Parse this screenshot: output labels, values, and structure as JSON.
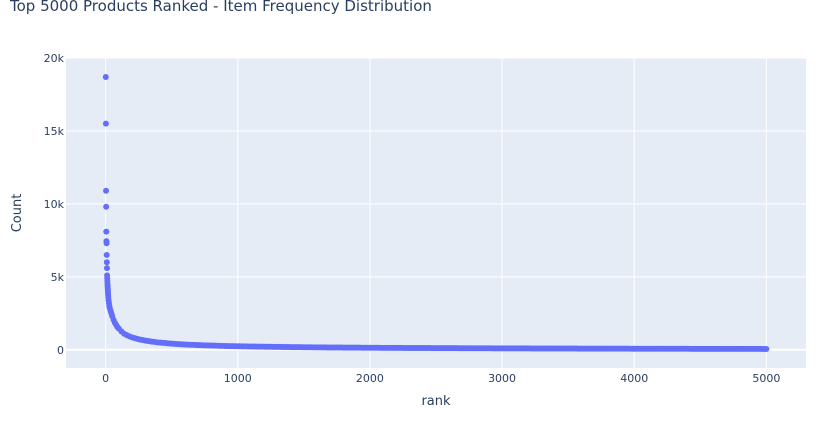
{
  "chart_data": {
    "type": "scatter",
    "title": "Top 5000 Products Ranked - Item Frequency Distribution",
    "xlabel": "rank",
    "ylabel": "Count",
    "xlim": [
      -300,
      5300
    ],
    "ylim": [
      -1250,
      20000
    ],
    "x_ticks": [
      0,
      1000,
      2000,
      3000,
      4000,
      5000
    ],
    "x_tick_labels": [
      "0",
      "1000",
      "2000",
      "3000",
      "4000",
      "5000"
    ],
    "y_ticks": [
      0,
      5000,
      10000,
      15000,
      20000
    ],
    "y_tick_labels": [
      "0",
      "5k",
      "10k",
      "15k",
      "20k"
    ],
    "grid": true,
    "marker_color": "#636efa",
    "plot_background": "#e5ecf6",
    "series": [
      {
        "x": [
          1,
          2,
          3,
          4,
          5,
          6,
          7,
          8,
          9,
          10,
          11,
          12,
          13,
          14,
          15,
          16,
          17,
          18,
          19,
          20,
          22,
          25,
          28,
          30,
          35,
          40,
          45,
          50,
          60,
          70,
          80,
          90,
          100,
          120,
          140,
          160,
          180,
          200,
          250,
          300,
          350,
          400,
          450,
          500,
          600,
          700,
          800,
          900,
          1000,
          1200,
          1400,
          1600,
          1800,
          2000,
          2250,
          2500,
          2750,
          3000,
          3250,
          3500,
          3750,
          4000,
          4250,
          4500,
          4750,
          5000
        ],
        "y": [
          18700,
          15500,
          10900,
          9800,
          8100,
          7450,
          7300,
          6500,
          6000,
          5600,
          5100,
          4900,
          4700,
          4500,
          4350,
          4200,
          4050,
          3900,
          3750,
          3600,
          3400,
          3200,
          3000,
          2900,
          2750,
          2600,
          2450,
          2300,
          2050,
          1850,
          1700,
          1550,
          1450,
          1250,
          1100,
          1000,
          920,
          850,
          720,
          630,
          560,
          500,
          460,
          420,
          360,
          320,
          290,
          260,
          240,
          210,
          185,
          165,
          150,
          138,
          125,
          115,
          105,
          97,
          90,
          84,
          78,
          73,
          68,
          64,
          60,
          56
        ]
      }
    ]
  }
}
